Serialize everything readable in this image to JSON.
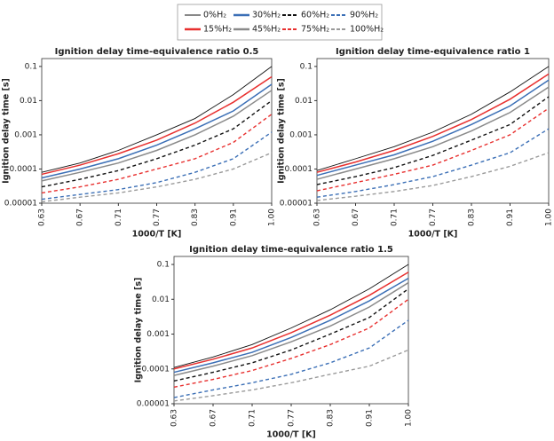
{
  "chart_data": [
    {
      "type": "line",
      "title": "Ignition delay time-equivalence ratio 0.5",
      "xlabel": "1000/T [K]",
      "ylabel": "Ignition delay time [s]",
      "categories": [
        "0.63",
        "0.67",
        "0.71",
        "0.77",
        "0.83",
        "0.91",
        "1.00"
      ],
      "log_y": true,
      "ylim": [
        1e-05,
        0.17
      ],
      "yticks": [
        1e-05,
        0.0001,
        0.001,
        0.01,
        0.1
      ],
      "series": [
        {
          "name": "0%H₂",
          "color": "#111111",
          "dash": false,
          "values": [
            8e-05,
            0.00015,
            0.00035,
            0.001,
            0.003,
            0.015,
            0.1
          ]
        },
        {
          "name": "15%H₂",
          "color": "#e8302f",
          "dash": false,
          "values": [
            7e-05,
            0.00013,
            0.00028,
            0.0007,
            0.0022,
            0.009,
            0.05
          ]
        },
        {
          "name": "30%H₂",
          "color": "#3b6fb6",
          "dash": false,
          "values": [
            5.5e-05,
            0.0001,
            0.0002,
            0.0005,
            0.0015,
            0.005,
            0.03
          ]
        },
        {
          "name": "45%H₂",
          "color": "#8a8a8a",
          "dash": false,
          "values": [
            4.5e-05,
            8e-05,
            0.00015,
            0.00035,
            0.001,
            0.0035,
            0.02
          ]
        },
        {
          "name": "60%H₂",
          "color": "#111111",
          "dash": true,
          "values": [
            3e-05,
            5e-05,
            9e-05,
            0.0002,
            0.0005,
            0.0015,
            0.01
          ]
        },
        {
          "name": "75%H₂",
          "color": "#e8302f",
          "dash": true,
          "values": [
            2e-05,
            3e-05,
            5e-05,
            0.0001,
            0.0002,
            0.0006,
            0.004
          ]
        },
        {
          "name": "90%H₂",
          "color": "#3b6fb6",
          "dash": true,
          "values": [
            1.3e-05,
            1.8e-05,
            2.5e-05,
            4e-05,
            8e-05,
            0.0002,
            0.0012
          ]
        },
        {
          "name": "100%H₂",
          "color": "#9a9a9a",
          "dash": true,
          "values": [
            1.1e-05,
            1.5e-05,
            2e-05,
            3e-05,
            5e-05,
            0.0001,
            0.0003
          ]
        }
      ]
    },
    {
      "type": "line",
      "title": "Ignition delay time-equivalence ratio 1",
      "xlabel": "1000/T [K]",
      "ylabel": "Ignition delay time [s]",
      "categories": [
        "0.63",
        "0.67",
        "0.71",
        "0.77",
        "0.83",
        "0.91",
        "1.00"
      ],
      "log_y": true,
      "ylim": [
        1e-05,
        0.17
      ],
      "yticks": [
        1e-05,
        0.0001,
        0.001,
        0.01,
        0.1
      ],
      "series": [
        {
          "color": "#111111",
          "dash": false,
          "values": [
            9e-05,
            0.0002,
            0.00045,
            0.0012,
            0.004,
            0.018,
            0.1
          ]
        },
        {
          "color": "#e8302f",
          "dash": false,
          "values": [
            8e-05,
            0.00016,
            0.00035,
            0.0009,
            0.0028,
            0.011,
            0.06
          ]
        },
        {
          "color": "#3b6fb6",
          "dash": false,
          "values": [
            6.5e-05,
            0.00013,
            0.00026,
            0.00065,
            0.002,
            0.007,
            0.04
          ]
        },
        {
          "color": "#8a8a8a",
          "dash": false,
          "values": [
            5e-05,
            0.0001,
            0.0002,
            0.00045,
            0.0013,
            0.0045,
            0.025
          ]
        },
        {
          "color": "#111111",
          "dash": true,
          "values": [
            3.5e-05,
            6e-05,
            0.00011,
            0.00025,
            0.0007,
            0.002,
            0.013
          ]
        },
        {
          "color": "#e8302f",
          "dash": true,
          "values": [
            2.3e-05,
            4e-05,
            7e-05,
            0.00013,
            0.00035,
            0.001,
            0.006
          ]
        },
        {
          "color": "#3b6fb6",
          "dash": true,
          "values": [
            1.5e-05,
            2.2e-05,
            3.5e-05,
            6e-05,
            0.00013,
            0.0003,
            0.0015
          ]
        },
        {
          "color": "#9a9a9a",
          "dash": true,
          "values": [
            1.2e-05,
            1.6e-05,
            2.2e-05,
            3.3e-05,
            6e-05,
            0.00012,
            0.0003
          ]
        }
      ]
    },
    {
      "type": "line",
      "title": "Ignition delay time-equivalence ratio 1.5",
      "xlabel": "1000/T [K]",
      "ylabel": "Ignition delay time [s]",
      "categories": [
        "0.63",
        "0.67",
        "0.71",
        "0.77",
        "0.83",
        "0.91",
        "1.00"
      ],
      "log_y": true,
      "ylim": [
        1e-05,
        0.17
      ],
      "yticks": [
        1e-05,
        0.0001,
        0.001,
        0.01,
        0.1
      ],
      "series": [
        {
          "color": "#111111",
          "dash": false,
          "values": [
            0.00011,
            0.00022,
            0.0005,
            0.0015,
            0.005,
            0.02,
            0.1
          ]
        },
        {
          "color": "#e8302f",
          "dash": false,
          "values": [
            0.0001,
            0.00019,
            0.0004,
            0.0011,
            0.0035,
            0.013,
            0.06
          ]
        },
        {
          "color": "#3b6fb6",
          "dash": false,
          "values": [
            8e-05,
            0.00015,
            0.0003,
            0.0008,
            0.0025,
            0.009,
            0.04
          ]
        },
        {
          "color": "#8a8a8a",
          "dash": false,
          "values": [
            6.5e-05,
            0.00012,
            0.00024,
            0.0006,
            0.0017,
            0.006,
            0.03
          ]
        },
        {
          "color": "#111111",
          "dash": true,
          "values": [
            4.5e-05,
            8e-05,
            0.00015,
            0.00035,
            0.001,
            0.003,
            0.02
          ]
        },
        {
          "color": "#e8302f",
          "dash": true,
          "values": [
            3e-05,
            5e-05,
            9e-05,
            0.0002,
            0.0005,
            0.0015,
            0.01
          ]
        },
        {
          "color": "#3b6fb6",
          "dash": true,
          "values": [
            1.5e-05,
            2.5e-05,
            4e-05,
            7e-05,
            0.00015,
            0.0004,
            0.0025
          ]
        },
        {
          "color": "#9a9a9a",
          "dash": true,
          "values": [
            1.2e-05,
            1.7e-05,
            2.5e-05,
            4e-05,
            7e-05,
            0.00012,
            0.00035
          ]
        }
      ]
    }
  ]
}
